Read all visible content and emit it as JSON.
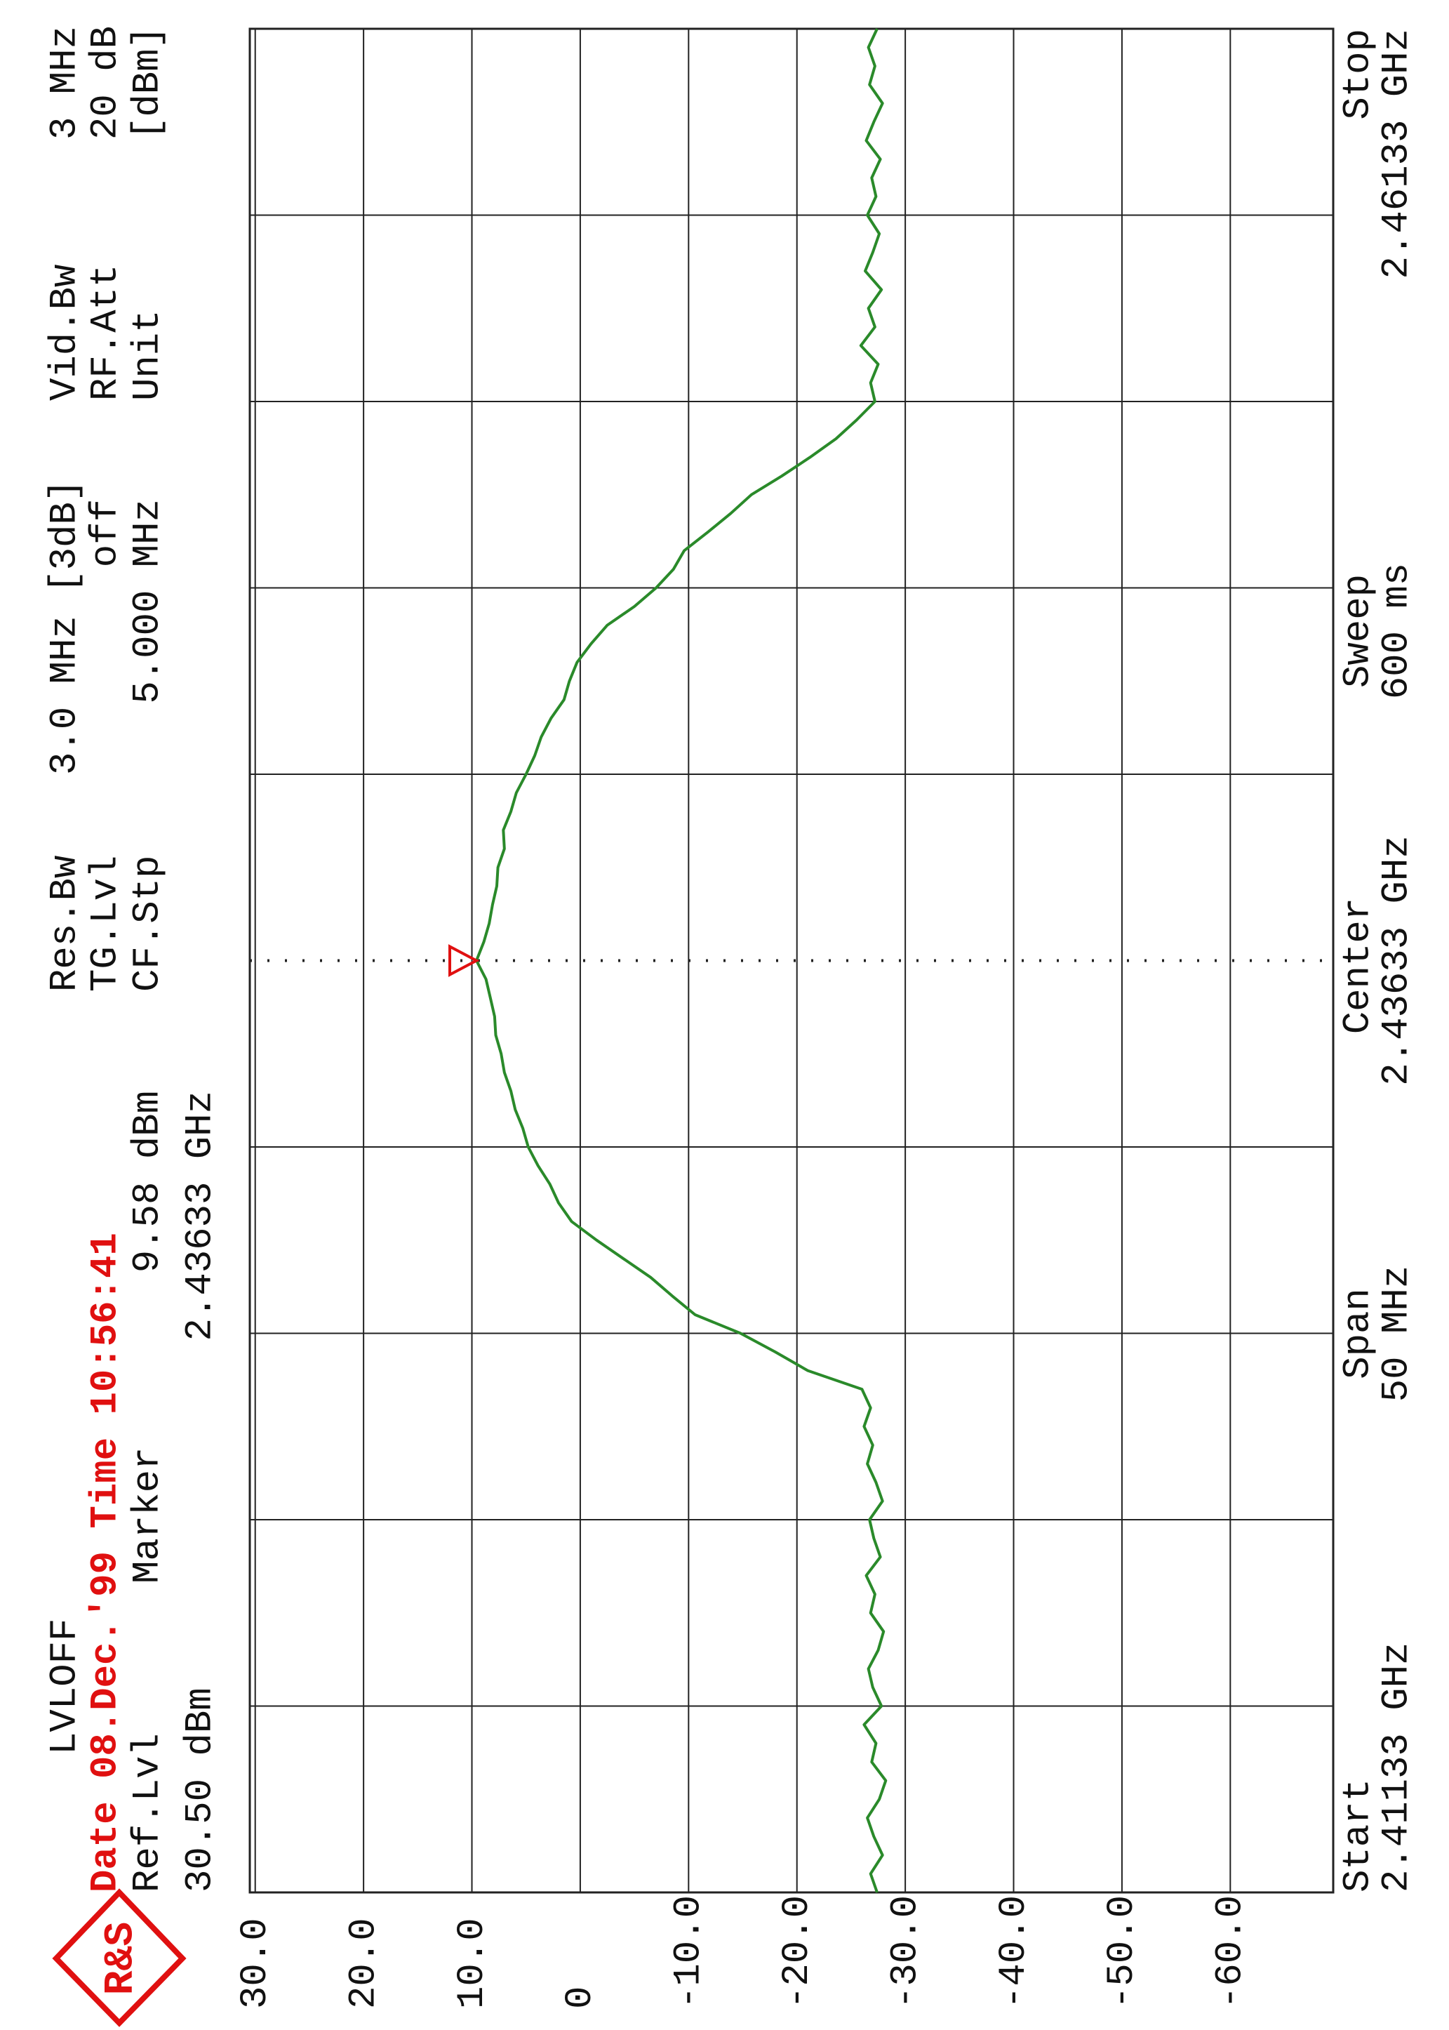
{
  "chart_data": {
    "type": "line",
    "header": {
      "mode": "LVLOFF",
      "date_time": "Date 08.Dec.'99 Time 10:56:41",
      "ref_lvl_label": "Ref.Lvl",
      "ref_lvl": "30.50 dBm",
      "res_bw_label": "Res.Bw",
      "res_bw": "3.0 MHz [3dB]",
      "tg_lvl_label": "TG.Lvl",
      "tg_lvl": "off",
      "cf_stp_label": "CF.Stp",
      "cf_stp": "5.000 MHz",
      "vid_bw_label": "Vid.Bw",
      "vid_bw": "3 MHz",
      "rf_att_label": "RF.Att",
      "rf_att": "20 dB",
      "unit_label": "Unit",
      "unit": "[dBm]"
    },
    "marker": {
      "label": "Marker",
      "level": {
        "value": 9.58,
        "label": "9.58 dBm"
      },
      "freq": {
        "value": 2.43633,
        "label": "2.43633 GHz"
      }
    },
    "footer": {
      "start_label": "Start",
      "center_label": "Center",
      "stop_label": "Stop",
      "span_label": "Span",
      "span": "50 MHz",
      "sweep_label": "Sweep",
      "sweep": "600 ms"
    },
    "logo": "R&S",
    "xlim": [
      2.41133,
      2.46133
    ],
    "xticks": [
      {
        "value": 2.41133,
        "label": "2.41133 GHz"
      },
      {
        "value": 2.43633,
        "label": "2.43633 GHz"
      },
      {
        "value": 2.46133,
        "label": "2.46133 GHz"
      }
    ],
    "ylim": [
      -69.5,
      30.5
    ],
    "yticks": [
      {
        "value": 30,
        "label": "30.0"
      },
      {
        "value": 20,
        "label": "20.0"
      },
      {
        "value": 10,
        "label": "10.0"
      },
      0,
      {
        "value": -10,
        "label": "-10.0"
      },
      {
        "value": -20,
        "label": "-20.0"
      },
      {
        "value": -30,
        "label": "-30.0"
      },
      {
        "value": -40,
        "label": "-40.0"
      },
      {
        "value": -50,
        "label": "-50.0"
      },
      {
        "value": -60,
        "label": "-60.0"
      }
    ],
    "grid": true,
    "color": "#2a8a2a",
    "marker_color": "#e01010",
    "x": [
      2.41133,
      2.41183,
      2.41233,
      2.41283,
      2.41333,
      2.41383,
      2.41433,
      2.41483,
      2.41533,
      2.41583,
      2.41633,
      2.41683,
      2.41733,
      2.41783,
      2.41833,
      2.41883,
      2.41933,
      2.41983,
      2.42033,
      2.42083,
      2.42133,
      2.42183,
      2.42233,
      2.42283,
      2.42333,
      2.42383,
      2.42433,
      2.42483,
      2.42533,
      2.42583,
      2.42633,
      2.42683,
      2.42733,
      2.42783,
      2.42833,
      2.42883,
      2.42933,
      2.42983,
      2.43033,
      2.43083,
      2.43133,
      2.43183,
      2.43233,
      2.43283,
      2.43333,
      2.43383,
      2.43433,
      2.43483,
      2.43533,
      2.43583,
      2.43633,
      2.43683,
      2.43733,
      2.43783,
      2.43833,
      2.43883,
      2.43933,
      2.43983,
      2.44033,
      2.44083,
      2.44133,
      2.44183,
      2.44233,
      2.44283,
      2.44333,
      2.44383,
      2.44433,
      2.44483,
      2.44533,
      2.44583,
      2.44633,
      2.44683,
      2.44733,
      2.44783,
      2.44833,
      2.44883,
      2.44933,
      2.44983,
      2.45033,
      2.45083,
      2.45133,
      2.45183,
      2.45233,
      2.45283,
      2.45333,
      2.45383,
      2.45433,
      2.45483,
      2.45533,
      2.45583,
      2.45633,
      2.45683,
      2.45733,
      2.45783,
      2.45833,
      2.45883,
      2.45933,
      2.45983,
      2.46033,
      2.46083,
      2.46133
    ],
    "values": [
      -27.4,
      -26.8,
      -27.9,
      -27.1,
      -26.5,
      -27.6,
      -28.2,
      -26.9,
      -27.3,
      -26.2,
      -27.8,
      -27.0,
      -26.6,
      -27.5,
      -28.0,
      -26.8,
      -27.2,
      -26.4,
      -27.7,
      -27.1,
      -26.7,
      -27.9,
      -27.3,
      -26.5,
      -27.0,
      -26.2,
      -26.8,
      -26,
      -21,
      -18,
      -14.8,
      -10.6,
      -8.5,
      -6.5,
      -4,
      -1.5,
      0.8,
      2,
      2.8,
      3.9,
      4.8,
      5.3,
      6,
      6.4,
      7,
      7.3,
      7.8,
      7.9,
      8.3,
      8.7,
      9.58,
      8.9,
      8.4,
      8.1,
      7.7,
      7.6,
      7.0,
      7.1,
      6.4,
      5.9,
      5.0,
      4.2,
      3.6,
      2.7,
      1.5,
      1.0,
      0.3,
      -1.0,
      -2.5,
      -5.0,
      -7.0,
      -8.6,
      -9.6,
      -11.8,
      -13.9,
      -15.8,
      -18.6,
      -21.2,
      -23.6,
      -25.5,
      -27.2,
      -26.8,
      -27.5,
      -25.9,
      -27.2,
      -26.6,
      -27.8,
      -26.3,
      -27.0,
      -27.6,
      -26.5,
      -27.3,
      -26.9,
      -27.7,
      -26.4,
      -27.1,
      -27.9,
      -26.7,
      -27.2,
      -26.6,
      -27.4
    ]
  }
}
